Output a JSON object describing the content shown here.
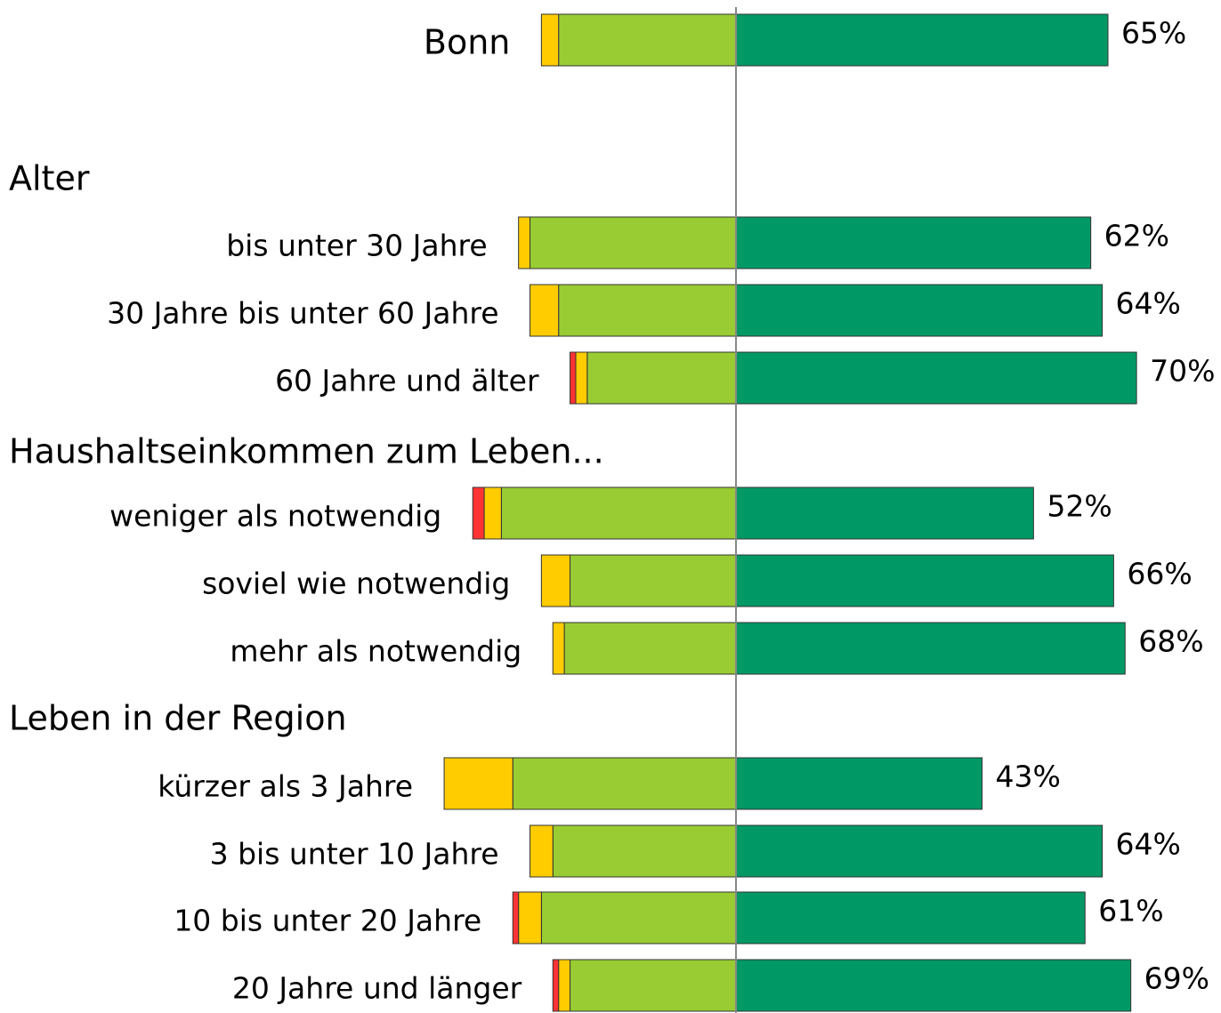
{
  "chart_data": {
    "type": "diverging-bar",
    "categories": [
      "Bonn",
      "Alter",
      "bis unter 30 Jahre",
      "30 Jahre bis unter 60 Jahre",
      "60 Jahre und älter",
      "Haushaltseinkommen zum Leben...",
      "weniger als notwendig",
      "soviel wie notwendig",
      "mehr als notwendig",
      "Leben in der Region",
      "kürzer als 3 Jahre",
      "3 bis unter 10 Jahre",
      "10 bis unter 20 Jahre",
      "20 Jahre und länger"
    ],
    "series": [
      {
        "color": "#009966",
        "values": [
          65,
          null,
          62,
          64,
          70,
          null,
          52,
          66,
          68,
          null,
          43,
          64,
          61,
          69
        ],
        "value_labels": [
          "65%",
          null,
          "62%",
          "64%",
          "70%",
          null,
          "52%",
          "66%",
          "68%",
          null,
          "43%",
          "64%",
          "61%",
          "69%"
        ]
      },
      {
        "color": "#99cc33",
        "values": [
          31,
          null,
          36,
          31,
          26,
          null,
          41,
          29,
          30,
          null,
          39,
          32,
          34,
          29
        ]
      },
      {
        "color": "#ffcc00",
        "values": [
          3,
          null,
          2,
          5,
          2,
          null,
          3,
          5,
          2,
          null,
          12,
          4,
          4,
          2
        ]
      },
      {
        "color": "#ff3333",
        "values": [
          0,
          null,
          0,
          0,
          1,
          null,
          2,
          0,
          0,
          null,
          0,
          0,
          1,
          1
        ]
      }
    ]
  }
}
